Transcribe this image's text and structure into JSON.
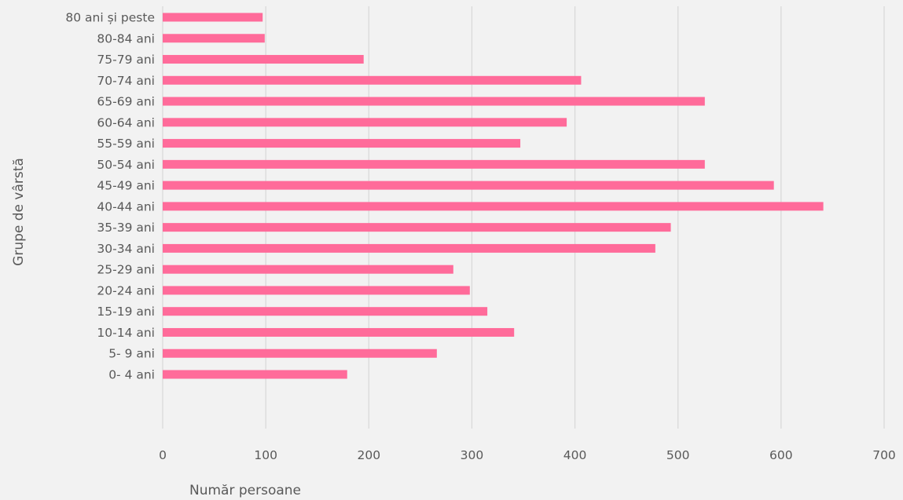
{
  "chart_data": {
    "type": "bar",
    "orientation": "horizontal",
    "categories": [
      "0- 4 ani",
      "5- 9 ani",
      "10-14 ani",
      "15-19 ani",
      "20-24 ani",
      "25-29 ani",
      "30-34 ani",
      "35-39 ani",
      "40-44 ani",
      "45-49 ani",
      "50-54 ani",
      "55-59 ani",
      "60-64 ani",
      "65-69 ani",
      "70-74 ani",
      "75-79 ani",
      "80-84 ani",
      "80 ani și peste"
    ],
    "values": [
      179,
      266,
      341,
      315,
      298,
      282,
      478,
      493,
      641,
      593,
      526,
      347,
      392,
      526,
      406,
      195,
      99,
      97
    ],
    "title": "",
    "xlabel": "Număr persoane",
    "ylabel": "Grupe de vârstă",
    "xlim": [
      0,
      700
    ],
    "xticks": [
      0,
      100,
      200,
      300,
      400,
      500,
      600,
      700
    ],
    "grid": "vertical",
    "legend": "none",
    "colors": {
      "bar": "#ff6b9a",
      "background": "#f2f2f2",
      "grid": "#d9d9d9",
      "text": "#595959"
    }
  }
}
